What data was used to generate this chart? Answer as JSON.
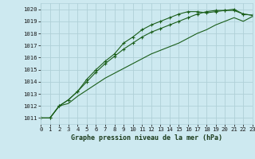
{
  "title": "Graphe pression niveau de la mer (hPa)",
  "bg_color": "#cde9f0",
  "grid_color": "#b0d0d8",
  "line_color": "#1a5e1a",
  "x_labels": [
    "0",
    "1",
    "2",
    "3",
    "4",
    "5",
    "6",
    "7",
    "8",
    "9",
    "10",
    "11",
    "12",
    "13",
    "14",
    "15",
    "16",
    "17",
    "18",
    "19",
    "20",
    "21",
    "22",
    "23"
  ],
  "ylim": [
    1010.5,
    1020.5
  ],
  "xlim": [
    0,
    23
  ],
  "yticks": [
    1011,
    1012,
    1013,
    1014,
    1015,
    1016,
    1017,
    1018,
    1019,
    1020
  ],
  "series1": [
    1011.0,
    1011.0,
    1012.0,
    1012.5,
    1013.2,
    1014.2,
    1015.0,
    1015.7,
    1016.3,
    1017.2,
    1017.7,
    1018.3,
    1018.7,
    1019.0,
    1019.3,
    1019.6,
    1019.8,
    1019.8,
    1019.7,
    1019.8,
    1019.9,
    1020.0,
    1019.6,
    1019.5
  ],
  "series2": [
    1011.0,
    1011.0,
    1012.0,
    1012.5,
    1013.2,
    1014.0,
    1014.8,
    1015.5,
    1016.1,
    1016.7,
    1017.2,
    1017.7,
    1018.1,
    1018.4,
    1018.7,
    1019.0,
    1019.3,
    1019.6,
    1019.8,
    1019.9,
    1019.9,
    1019.9,
    1019.6,
    1019.5
  ],
  "series3": [
    1011.0,
    1011.0,
    1012.0,
    1012.2,
    1012.8,
    1013.3,
    1013.8,
    1014.3,
    1014.7,
    1015.1,
    1015.5,
    1015.9,
    1016.3,
    1016.6,
    1016.9,
    1017.2,
    1017.6,
    1018.0,
    1018.3,
    1018.7,
    1019.0,
    1019.3,
    1019.0,
    1019.4
  ]
}
